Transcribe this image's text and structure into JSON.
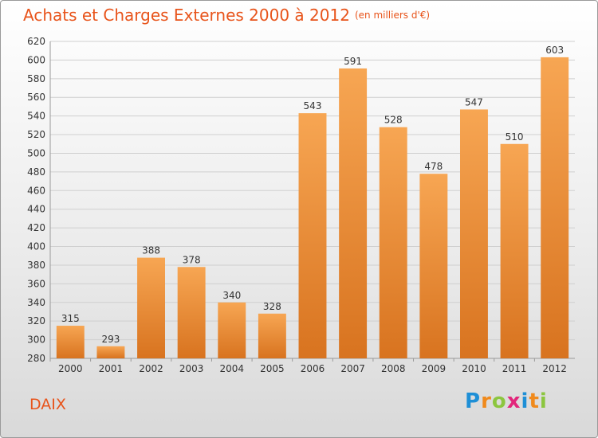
{
  "title": "Achats et Charges Externes 2000 à 2012",
  "unit": "(en milliers d'€)",
  "place": "DAIX",
  "logo": {
    "p": "P",
    "r": "r",
    "o": "o",
    "x": "x",
    "i1": "i",
    "t": "t",
    "i2": "i"
  },
  "colors": {
    "title": "#e8541b",
    "bar_top": "#f7a653",
    "bar_bottom": "#d8731f"
  },
  "chart_data": {
    "type": "bar",
    "title": "Achats et Charges Externes 2000 à 2012",
    "subtitle": "(en milliers d'€)",
    "categories": [
      "2000",
      "2001",
      "2002",
      "2003",
      "2004",
      "2005",
      "2006",
      "2007",
      "2008",
      "2009",
      "2010",
      "2011",
      "2012"
    ],
    "values": [
      315,
      293,
      388,
      378,
      340,
      328,
      543,
      591,
      528,
      478,
      547,
      510,
      603
    ],
    "ylim": [
      280,
      620
    ],
    "yticks": [
      280,
      300,
      320,
      340,
      360,
      380,
      400,
      420,
      440,
      460,
      480,
      500,
      520,
      540,
      560,
      580,
      600,
      620
    ],
    "grid": true
  }
}
